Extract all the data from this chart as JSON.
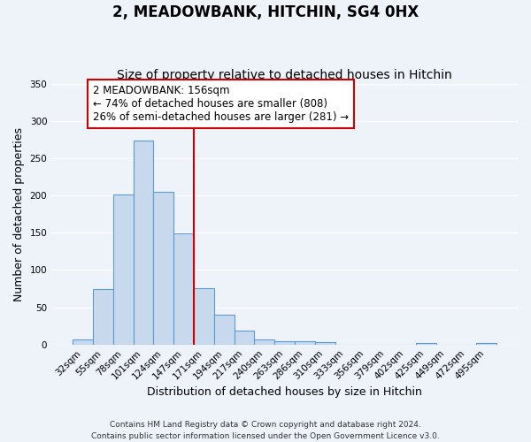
{
  "title": "2, MEADOWBANK, HITCHIN, SG4 0HX",
  "subtitle": "Size of property relative to detached houses in Hitchin",
  "xlabel": "Distribution of detached houses by size in Hitchin",
  "ylabel": "Number of detached properties",
  "bar_labels": [
    "32sqm",
    "55sqm",
    "78sqm",
    "101sqm",
    "124sqm",
    "147sqm",
    "171sqm",
    "194sqm",
    "217sqm",
    "240sqm",
    "263sqm",
    "286sqm",
    "310sqm",
    "333sqm",
    "356sqm",
    "379sqm",
    "402sqm",
    "425sqm",
    "449sqm",
    "472sqm",
    "495sqm"
  ],
  "bar_values": [
    7,
    74,
    201,
    273,
    205,
    149,
    75,
    40,
    19,
    7,
    5,
    4,
    3,
    0,
    0,
    0,
    0,
    2,
    0,
    0,
    2
  ],
  "bar_color": "#c8d9ed",
  "bar_edge_color": "#5b9bd5",
  "vline_x": 5.5,
  "vline_color": "#cc0000",
  "annotation_title": "2 MEADOWBANK: 156sqm",
  "annotation_line1": "← 74% of detached houses are smaller (808)",
  "annotation_line2": "26% of semi-detached houses are larger (281) →",
  "annotation_box_edge": "#cc0000",
  "ylim": [
    0,
    350
  ],
  "yticks": [
    0,
    50,
    100,
    150,
    200,
    250,
    300,
    350
  ],
  "footnote1": "Contains HM Land Registry data © Crown copyright and database right 2024.",
  "footnote2": "Contains public sector information licensed under the Open Government Licence v3.0.",
  "bg_color": "#eef2f9",
  "grid_color": "#ffffff",
  "title_fontsize": 12,
  "subtitle_fontsize": 10,
  "axis_label_fontsize": 9,
  "tick_fontsize": 7.5,
  "annotation_fontsize": 8.5,
  "footnote_fontsize": 6.5
}
